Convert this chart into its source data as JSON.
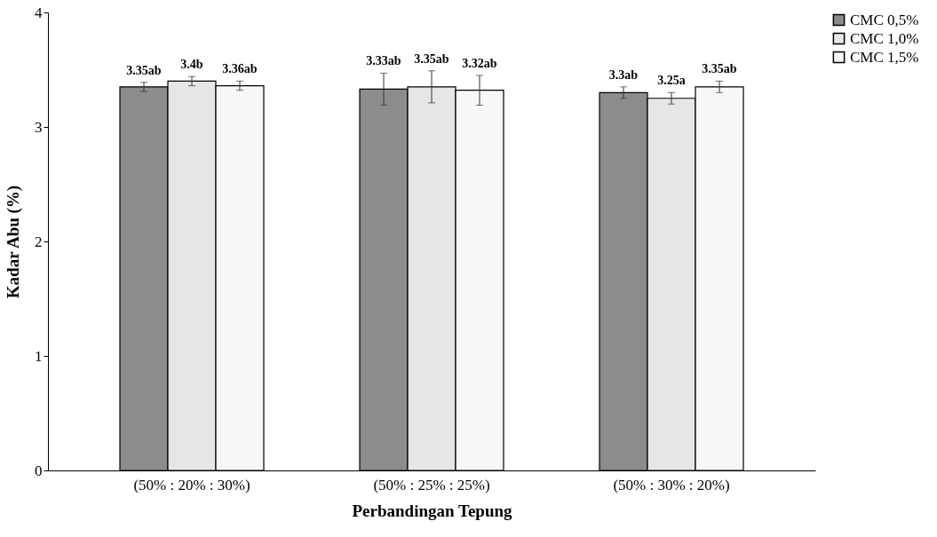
{
  "chart_data": {
    "type": "bar",
    "xlabel": "Perbandingan Tepung",
    "ylabel": "Kadar Abu (%)",
    "categories": [
      "(50% : 20% : 30%)",
      "(50% : 25% : 25%)",
      "(50% : 30% : 20%)"
    ],
    "series": [
      {
        "name": "CMC 0,5%",
        "color": "#8c8c8c",
        "values": [
          3.35,
          3.33,
          3.3
        ],
        "errors": [
          0.04,
          0.14,
          0.05
        ],
        "value_labels": [
          "3.35ab",
          "3.33ab",
          "3.3ab"
        ]
      },
      {
        "name": "CMC 1,0%",
        "color": "#e6e6e6",
        "values": [
          3.4,
          3.35,
          3.25
        ],
        "errors": [
          0.04,
          0.14,
          0.05
        ],
        "value_labels": [
          "3.4b",
          "3.35ab",
          "3.25a"
        ]
      },
      {
        "name": "CMC 1,5%",
        "color": "#f7f7f7",
        "values": [
          3.36,
          3.32,
          3.35
        ],
        "errors": [
          0.04,
          0.13,
          0.05
        ],
        "value_labels": [
          "3.36ab",
          "3.32ab",
          "3.35ab"
        ]
      }
    ],
    "ylim": [
      0,
      4
    ],
    "yticks": [
      0,
      1,
      2,
      3,
      4
    ],
    "grid": false,
    "legend": "right"
  }
}
